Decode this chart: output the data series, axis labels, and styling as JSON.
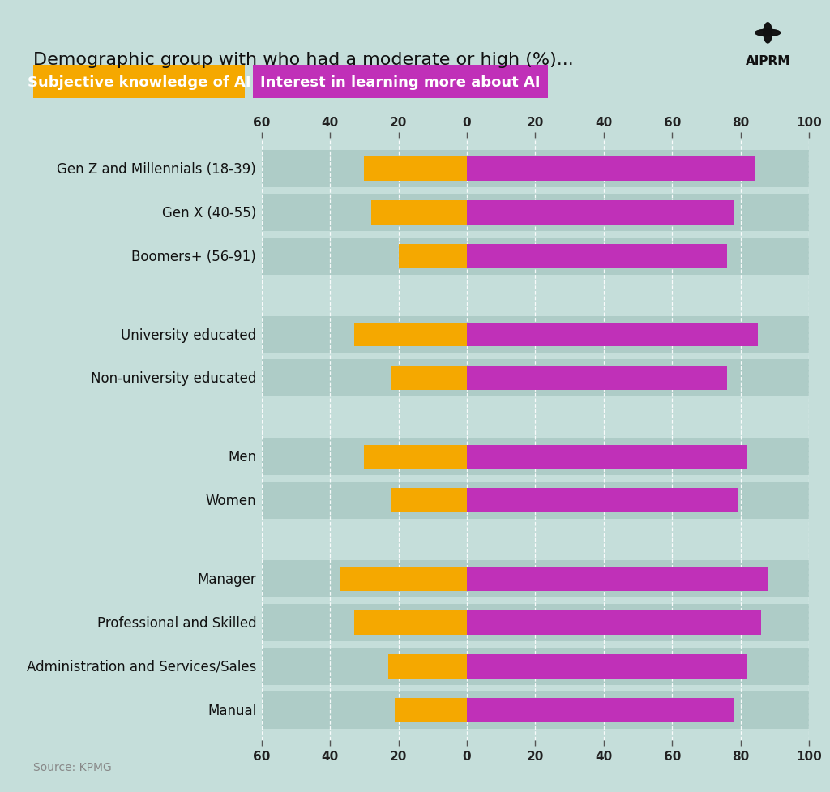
{
  "title": "Demographic group with who had a moderate or high (%)...",
  "subtitle_orange": "Subjective knowledge of AI",
  "subtitle_purple": "Interest in learning more about AI",
  "source": "Source: KPMG",
  "background_color": "#c5deda",
  "bar_bg_color": "#aeccc7",
  "orange_color": "#F5A800",
  "purple_color": "#C030B8",
  "categories": [
    "Gen Z and Millennials (18-39)",
    "Gen X (40-55)",
    "Boomers+ (56-91)",
    "University educated",
    "Non-university educated",
    "Men",
    "Women",
    "Manager",
    "Professional and Skilled",
    "Administration and Services/Sales",
    "Manual"
  ],
  "orange_values": [
    30,
    28,
    20,
    33,
    22,
    30,
    22,
    37,
    33,
    23,
    21
  ],
  "purple_values": [
    84,
    78,
    76,
    85,
    76,
    82,
    79,
    88,
    86,
    82,
    78
  ],
  "group_breaks_after": [
    2,
    4,
    6
  ],
  "xlim_left": -60,
  "xlim_right": 100,
  "xticks": [
    -60,
    -40,
    -20,
    0,
    20,
    40,
    60,
    80,
    100
  ],
  "xticklabels": [
    "60",
    "40",
    "20",
    "0",
    "20",
    "40",
    "60",
    "80",
    "100"
  ],
  "title_fontsize": 16,
  "label_fontsize": 12,
  "tick_fontsize": 11,
  "source_fontsize": 10,
  "legend_fontsize": 13
}
